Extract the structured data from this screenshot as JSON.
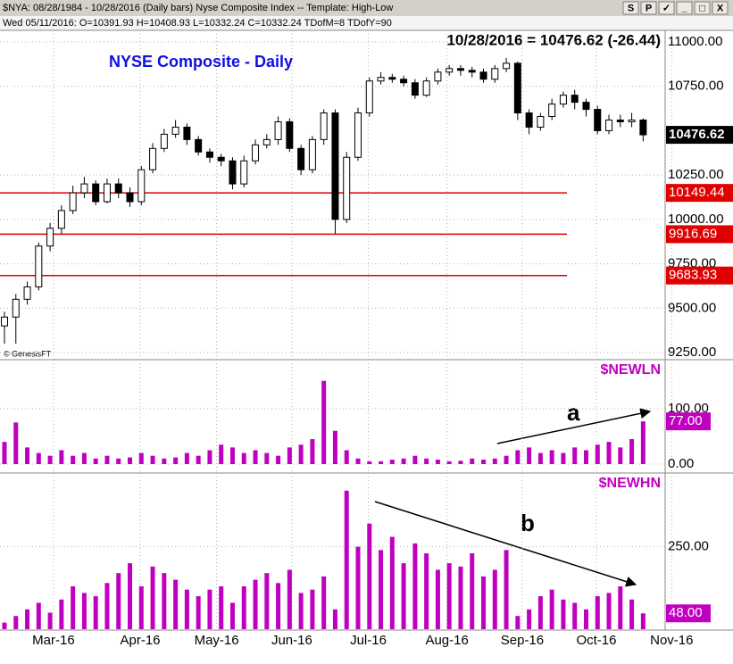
{
  "header": {
    "symbol_line": "$NYA: 08/28/1984 - 10/28/2016 (Daily bars)   Nyse Composite Index  --  Template: High-Low",
    "info_line": "Wed 05/11/2016:  O=10391.93  H=10408.93  L=10332.24  C=10332.24  TDofM=8  TDofY=90",
    "buttons": [
      "S",
      "P",
      "✓",
      "_",
      "□",
      "X"
    ],
    "quote": "10/28/2016 = 10476.62 (-26.44)",
    "credit": "© GenesisFT"
  },
  "chart_data": [
    {
      "type": "candlestick",
      "title": "NYSE Composite - Daily",
      "up_color": "#ffffff",
      "down_color": "#000000",
      "open": [
        9400,
        9450,
        9550,
        9620,
        9850,
        9950,
        10050,
        10150,
        10200,
        10100,
        10200,
        10150,
        10100,
        10280,
        10400,
        10480,
        10520,
        10450,
        10380,
        10350,
        10330,
        10200,
        10330,
        10420,
        10450,
        10550,
        10400,
        10280,
        10450,
        10600,
        10000,
        10350,
        10600,
        10780,
        10800,
        10790,
        10770,
        10700,
        10780,
        10830,
        10850,
        10840,
        10830,
        10790,
        10850,
        10880,
        10600,
        10520,
        10580,
        10650,
        10700,
        10660,
        10620,
        10500,
        10560,
        10550,
        10560
      ],
      "high": [
        9480,
        9580,
        9650,
        9870,
        9980,
        10080,
        10190,
        10240,
        10220,
        10230,
        10230,
        10180,
        10300,
        10430,
        10510,
        10560,
        10540,
        10470,
        10400,
        10370,
        10350,
        10360,
        10450,
        10480,
        10580,
        10570,
        10420,
        10470,
        10620,
        10620,
        10380,
        10630,
        10800,
        10830,
        10820,
        10810,
        10790,
        10800,
        10850,
        10870,
        10870,
        10860,
        10850,
        10870,
        10910,
        10890,
        10620,
        10600,
        10680,
        10720,
        10730,
        10680,
        10640,
        10590,
        10590,
        10600,
        10570
      ],
      "low": [
        9300,
        9300,
        9520,
        9600,
        9820,
        9920,
        10030,
        10120,
        10080,
        10090,
        10120,
        10070,
        10080,
        10260,
        10380,
        10460,
        10420,
        10360,
        10320,
        10300,
        10170,
        10180,
        10310,
        10400,
        10420,
        10380,
        10250,
        10260,
        10420,
        9920,
        9980,
        10330,
        10580,
        10760,
        10770,
        10750,
        10680,
        10690,
        10760,
        10810,
        10810,
        10800,
        10770,
        10770,
        10830,
        10560,
        10480,
        10500,
        10560,
        10630,
        10620,
        10580,
        10480,
        10480,
        10520,
        10520,
        10440
      ],
      "close": [
        9450,
        9550,
        9620,
        9850,
        9950,
        10050,
        10150,
        10200,
        10100,
        10200,
        10150,
        10100,
        10280,
        10400,
        10480,
        10520,
        10450,
        10380,
        10350,
        10330,
        10200,
        10330,
        10420,
        10450,
        10550,
        10400,
        10280,
        10450,
        10600,
        10000,
        10350,
        10600,
        10780,
        10800,
        10790,
        10770,
        10700,
        10780,
        10830,
        10850,
        10840,
        10830,
        10790,
        10850,
        10880,
        10600,
        10520,
        10580,
        10650,
        10700,
        10660,
        10620,
        10500,
        10560,
        10550,
        10560,
        10476.62
      ],
      "levels": [
        10149.44,
        9916.69,
        9683.93
      ],
      "level_color": "#e00000",
      "ylim": [
        9250,
        11000
      ],
      "yticks": [
        {
          "value": 9250,
          "label": "9250.00"
        },
        {
          "value": 9500,
          "label": "9500.00"
        },
        {
          "value": 9750,
          "label": "9750.00"
        },
        {
          "value": 10000,
          "label": "10000.00"
        },
        {
          "value": 10250,
          "label": "10250.00"
        },
        {
          "value": 10750,
          "label": "10750.00"
        },
        {
          "value": 11000,
          "label": "11000.00"
        }
      ],
      "grid": true
    },
    {
      "type": "bar",
      "title": "$NEWLN",
      "color": "#c000c0",
      "values": [
        40,
        75,
        30,
        20,
        15,
        25,
        15,
        20,
        10,
        15,
        10,
        12,
        20,
        15,
        10,
        12,
        20,
        15,
        25,
        35,
        30,
        20,
        25,
        20,
        15,
        30,
        35,
        45,
        150,
        60,
        25,
        10,
        5,
        5,
        8,
        10,
        15,
        10,
        8,
        5,
        6,
        10,
        8,
        10,
        15,
        25,
        30,
        20,
        25,
        20,
        30,
        25,
        35,
        40,
        30,
        45,
        77
      ],
      "last_label": {
        "value": 77,
        "label": "77.00"
      },
      "annotation": "a",
      "ylim": [
        0,
        185
      ],
      "yticks": [
        {
          "value": 0,
          "label": "0.00"
        },
        {
          "value": 100,
          "label": "100.00"
        }
      ],
      "grid": true
    },
    {
      "type": "bar",
      "title": "$NEWHN",
      "color": "#c000c0",
      "values": [
        20,
        40,
        60,
        80,
        50,
        90,
        130,
        110,
        100,
        140,
        170,
        200,
        130,
        190,
        170,
        150,
        120,
        100,
        120,
        130,
        80,
        130,
        150,
        170,
        140,
        180,
        110,
        120,
        160,
        60,
        420,
        250,
        320,
        240,
        280,
        200,
        260,
        230,
        180,
        200,
        190,
        230,
        160,
        180,
        240,
        40,
        60,
        100,
        120,
        90,
        80,
        60,
        100,
        110,
        130,
        90,
        48
      ],
      "last_label": {
        "value": 48,
        "label": "48.00"
      },
      "annotation": "b",
      "ylim": [
        0,
        460
      ],
      "yticks": [
        {
          "value": 250,
          "label": "250.00"
        }
      ],
      "grid": true,
      "xlim": [
        0,
        62
      ],
      "xticks": [
        {
          "value": 4.3,
          "label": "Mar-16"
        },
        {
          "value": 11.9,
          "label": "Apr-16"
        },
        {
          "value": 18.6,
          "label": "May-16"
        },
        {
          "value": 25.2,
          "label": "Jun-16"
        },
        {
          "value": 31.9,
          "label": "Jul-16"
        },
        {
          "value": 38.8,
          "label": "Aug-16"
        },
        {
          "value": 45.4,
          "label": "Sep-16"
        },
        {
          "value": 51.9,
          "label": "Oct-16"
        },
        {
          "value": 58.5,
          "label": "Nov-16"
        }
      ]
    }
  ]
}
